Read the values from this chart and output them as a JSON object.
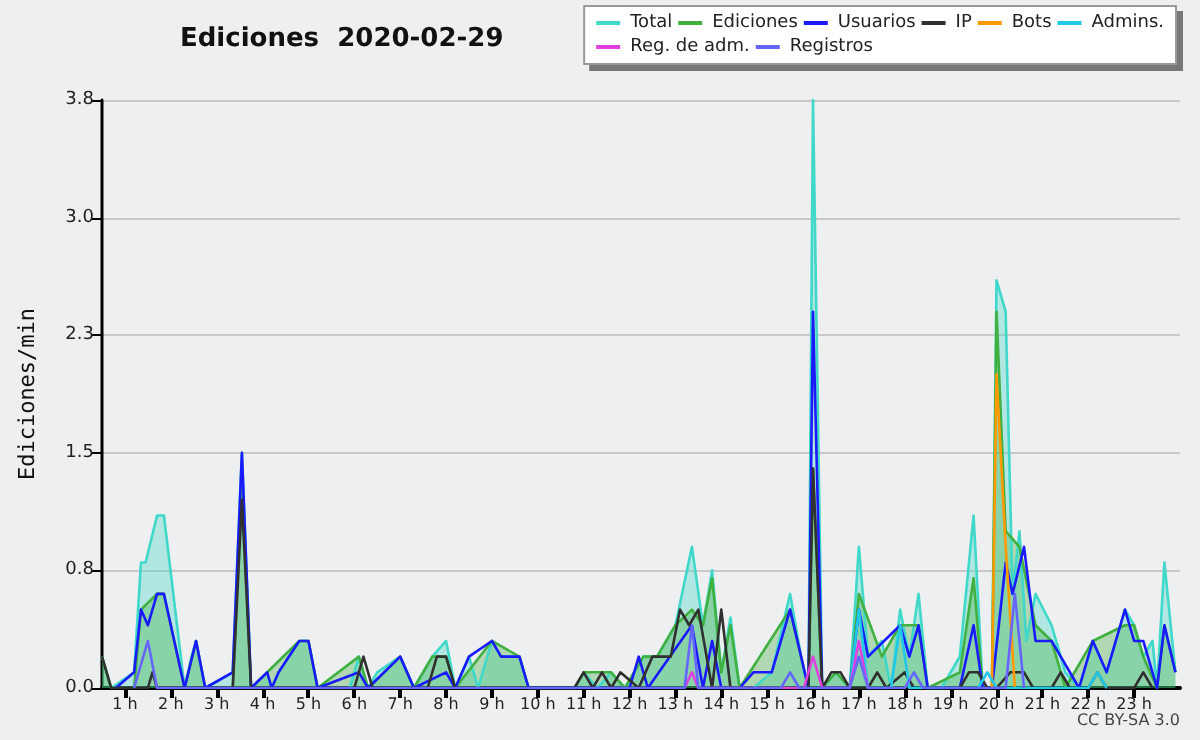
{
  "chart_data": {
    "type": "line",
    "title": "Ediciones  2020-02-29",
    "ylabel": "Ediciones/min",
    "xlim": [
      0.5,
      24
    ],
    "xticks": [
      {
        "value": 1,
        "label": "1 h"
      },
      {
        "value": 2,
        "label": "2 h"
      },
      {
        "value": 3,
        "label": "3 h"
      },
      {
        "value": 4,
        "label": "4 h"
      },
      {
        "value": 5,
        "label": "5 h"
      },
      {
        "value": 6,
        "label": "6 h"
      },
      {
        "value": 7,
        "label": "7 h"
      },
      {
        "value": 8,
        "label": "8 h"
      },
      {
        "value": 9,
        "label": "9 h"
      },
      {
        "value": 10,
        "label": "10 h"
      },
      {
        "value": 11,
        "label": "11 h"
      },
      {
        "value": 12,
        "label": "12 h"
      },
      {
        "value": 13,
        "label": "13 h"
      },
      {
        "value": 14,
        "label": "14 h"
      },
      {
        "value": 15,
        "label": "15 h"
      },
      {
        "value": 16,
        "label": "16 h"
      },
      {
        "value": 17,
        "label": "17 h"
      },
      {
        "value": 18,
        "label": "18 h"
      },
      {
        "value": 19,
        "label": "19 h"
      },
      {
        "value": 20,
        "label": "20 h"
      },
      {
        "value": 21,
        "label": "21 h"
      },
      {
        "value": 22,
        "label": "22 h"
      },
      {
        "value": 23,
        "label": "23 h"
      }
    ],
    "ylim": [
      0,
      3.75
    ],
    "yticks": [
      {
        "value": 0,
        "label": "0.0"
      },
      {
        "value": 0.75,
        "label": "0.8"
      },
      {
        "value": 1.5,
        "label": "1.5"
      },
      {
        "value": 2.25,
        "label": "2.3"
      },
      {
        "value": 3,
        "label": "3.0"
      },
      {
        "value": 3.75,
        "label": "3.8"
      }
    ],
    "grid": "y",
    "legend": "top right",
    "marker": "none",
    "line_style": "solid",
    "annotations": [
      "CC BY-SA 3.0"
    ],
    "series": [
      {
        "name": "Total",
        "type": "area",
        "color": "#40d8c8",
        "x": [
          0.5,
          0.7,
          1.2,
          1.35,
          1.45,
          1.7,
          1.85,
          2.3,
          2.45,
          2.55,
          2.75,
          3.35,
          3.55,
          3.75,
          4.1,
          4.2,
          4.35,
          4.8,
          5.0,
          5.2,
          5.9,
          6.1,
          6.3,
          6.5,
          7.0,
          7.3,
          7.7,
          8.0,
          8.2,
          8.5,
          8.7,
          9.0,
          9.2,
          9.6,
          9.8,
          10.8,
          11.0,
          11.3,
          11.6,
          11.9,
          12.3,
          12.6,
          13.0,
          13.36,
          13.6,
          13.8,
          14.0,
          14.2,
          14.4,
          14.7,
          15.1,
          15.5,
          15.8,
          15.9,
          16.0,
          16.2,
          16.5,
          16.8,
          17.0,
          17.2,
          17.5,
          17.7,
          17.9,
          18.1,
          18.3,
          18.5,
          18.8,
          19.2,
          19.5,
          19.7,
          19.9,
          20.0,
          20.2,
          20.35,
          20.5,
          20.65,
          20.85,
          21.2,
          21.5,
          21.8,
          22.1,
          22.4,
          22.8,
          23.0,
          23.2,
          23.4,
          23.5,
          23.66,
          23.9
        ],
        "values": [
          0.2,
          0,
          0.1,
          0.8,
          0.8,
          1.1,
          1.1,
          0,
          0.2,
          0.3,
          0,
          0.1,
          1.5,
          0,
          0.1,
          0,
          0.1,
          0.3,
          0.3,
          0,
          0,
          0.2,
          0,
          0.1,
          0.2,
          0,
          0.2,
          0.3,
          0,
          0.2,
          0,
          0.3,
          0.2,
          0.2,
          0,
          0,
          0.1,
          0,
          0.1,
          0,
          0.2,
          0.2,
          0.4,
          0.9,
          0.4,
          0.75,
          0.1,
          0.45,
          0,
          0,
          0.1,
          0.6,
          0.1,
          0,
          3.75,
          0,
          0.1,
          0,
          0.9,
          0.2,
          0.3,
          0,
          0.5,
          0.2,
          0.6,
          0,
          0,
          0.2,
          1.1,
          0,
          0,
          2.6,
          2.4,
          0.6,
          1.0,
          0.3,
          0.6,
          0.4,
          0.1,
          0,
          0.3,
          0.1,
          0.5,
          0.4,
          0.2,
          0.3,
          0,
          0.8,
          0.1
        ]
      },
      {
        "name": "Ediciones",
        "type": "area",
        "color": "#40b040",
        "x": [
          0.5,
          0.7,
          1.2,
          1.35,
          1.7,
          1.85,
          2.3,
          2.55,
          2.75,
          3.35,
          3.55,
          3.75,
          4.8,
          5.0,
          5.2,
          6.1,
          6.3,
          7.0,
          7.3,
          7.7,
          8.0,
          8.2,
          9.0,
          9.6,
          9.8,
          10.8,
          11.0,
          11.6,
          11.9,
          12.3,
          12.6,
          13.0,
          13.36,
          13.6,
          13.8,
          14.0,
          14.2,
          14.4,
          15.5,
          15.9,
          16.0,
          16.2,
          16.5,
          16.8,
          17.0,
          17.5,
          17.9,
          18.3,
          18.5,
          19.2,
          19.5,
          19.7,
          19.9,
          20.0,
          20.2,
          20.5,
          20.85,
          21.2,
          21.5,
          22.1,
          22.8,
          23.0,
          23.2,
          23.5,
          23.66,
          23.9
        ],
        "values": [
          0.2,
          0,
          0,
          0.5,
          0.6,
          0.6,
          0,
          0.3,
          0,
          0,
          1.4,
          0,
          0.3,
          0.3,
          0,
          0.2,
          0,
          0.2,
          0,
          0.2,
          0.2,
          0,
          0.3,
          0.2,
          0,
          0,
          0.1,
          0.1,
          0,
          0.2,
          0.2,
          0.4,
          0.5,
          0.4,
          0.7,
          0.1,
          0.4,
          0,
          0.5,
          0,
          1.4,
          0,
          0.1,
          0,
          0.6,
          0.2,
          0.4,
          0.4,
          0,
          0.1,
          0.7,
          0,
          0,
          2.4,
          1.0,
          0.9,
          0.4,
          0.3,
          0,
          0.3,
          0.4,
          0.4,
          0.2,
          0,
          0.4,
          0.1
        ]
      },
      {
        "name": "Usuarios",
        "color": "#1a1aff",
        "x": [
          0.8,
          1.2,
          1.35,
          1.5,
          1.7,
          1.85,
          2.3,
          2.55,
          2.75,
          3.35,
          3.55,
          3.75,
          4.1,
          4.2,
          4.35,
          4.8,
          5.0,
          5.2,
          6.1,
          6.3,
          7.0,
          7.3,
          8.0,
          8.2,
          8.5,
          9.0,
          9.2,
          9.6,
          9.8,
          12.0,
          12.2,
          12.4,
          13.36,
          13.6,
          13.8,
          14.0,
          14.4,
          14.7,
          15.1,
          15.5,
          15.9,
          16.0,
          16.2,
          16.8,
          17.0,
          17.2,
          17.9,
          18.1,
          18.3,
          18.5,
          19.2,
          19.5,
          19.7,
          19.9,
          20.2,
          20.35,
          20.6,
          20.85,
          21.2,
          21.8,
          22.1,
          22.4,
          22.8,
          23.0,
          23.2,
          23.5,
          23.66,
          23.9
        ],
        "values": [
          0,
          0.1,
          0.5,
          0.4,
          0.6,
          0.6,
          0,
          0.3,
          0,
          0.1,
          1.5,
          0,
          0.1,
          0,
          0.1,
          0.3,
          0.3,
          0,
          0.1,
          0,
          0.2,
          0,
          0.1,
          0,
          0.2,
          0.3,
          0.2,
          0.2,
          0,
          0,
          0.2,
          0,
          0.4,
          0,
          0.3,
          0,
          0,
          0.1,
          0.1,
          0.5,
          0,
          2.4,
          0,
          0,
          0.5,
          0.2,
          0.4,
          0.2,
          0.4,
          0,
          0,
          0.4,
          0,
          0,
          0.8,
          0.6,
          0.9,
          0.3,
          0.3,
          0,
          0.3,
          0.1,
          0.5,
          0.3,
          0.3,
          0,
          0.4,
          0.1
        ]
      },
      {
        "name": "IP",
        "color": "#303030",
        "x": [
          0.5,
          0.7,
          1.5,
          1.6,
          1.7,
          3.35,
          3.55,
          3.75,
          6.0,
          6.2,
          6.4,
          7.6,
          7.8,
          8.0,
          8.2,
          10.8,
          11.0,
          11.2,
          11.4,
          11.6,
          11.8,
          12.2,
          12.5,
          12.9,
          13.1,
          13.3,
          13.5,
          13.8,
          14.0,
          14.2,
          14.4,
          15.9,
          16.0,
          16.2,
          16.4,
          16.6,
          16.8,
          17.2,
          17.4,
          17.6,
          18.0,
          18.2,
          19.2,
          19.4,
          19.6,
          19.8,
          20.0,
          20.3,
          20.6,
          20.8,
          21.2,
          21.4,
          21.6,
          22.0,
          22.2,
          22.4,
          23.0,
          23.2,
          23.4
        ],
        "values": [
          0.2,
          0,
          0,
          0.1,
          0,
          0,
          1.2,
          0,
          0,
          0.2,
          0,
          0,
          0.2,
          0.2,
          0,
          0,
          0.1,
          0,
          0.1,
          0,
          0.1,
          0,
          0.2,
          0.2,
          0.5,
          0.4,
          0.5,
          0,
          0.5,
          0,
          0,
          0,
          1.4,
          0,
          0.1,
          0.1,
          0,
          0,
          0.1,
          0,
          0.1,
          0,
          0,
          0.1,
          0.1,
          0,
          0,
          0.1,
          0.1,
          0,
          0,
          0.1,
          0,
          0,
          0.1,
          0,
          0,
          0.1,
          0
        ]
      },
      {
        "name": "Bots",
        "color": "#ff9900",
        "x": [
          19.9,
          20.0,
          20.2,
          20.4
        ],
        "values": [
          0,
          2.0,
          0.9,
          0
        ]
      },
      {
        "name": "Admins.",
        "color": "#22c8e8",
        "x": [
          16.8,
          17.0,
          17.2,
          17.7,
          17.9,
          18.1,
          19.6,
          19.8,
          20.0,
          22.0,
          22.2,
          22.4
        ],
        "values": [
          0,
          0.5,
          0,
          0,
          0.4,
          0,
          0,
          0.1,
          0,
          0,
          0.1,
          0
        ]
      },
      {
        "name": "Reg. de adm.",
        "color": "#e040e0",
        "x": [
          13.2,
          13.36,
          13.5,
          15.8,
          16.0,
          16.2,
          16.8,
          17.0,
          17.2
        ],
        "values": [
          0,
          0.1,
          0,
          0,
          0.2,
          0,
          0,
          0.3,
          0
        ]
      },
      {
        "name": "Registros",
        "color": "#6666ff",
        "x": [
          1.2,
          1.5,
          1.7,
          13.2,
          13.36,
          13.5,
          15.3,
          15.5,
          15.7,
          16.8,
          17.0,
          17.2,
          18.0,
          18.2,
          18.4,
          20.2,
          20.4,
          20.6
        ],
        "values": [
          0,
          0.3,
          0,
          0,
          0.4,
          0,
          0,
          0.1,
          0,
          0,
          0.2,
          0,
          0,
          0.1,
          0,
          0,
          0.6,
          0
        ]
      }
    ]
  }
}
